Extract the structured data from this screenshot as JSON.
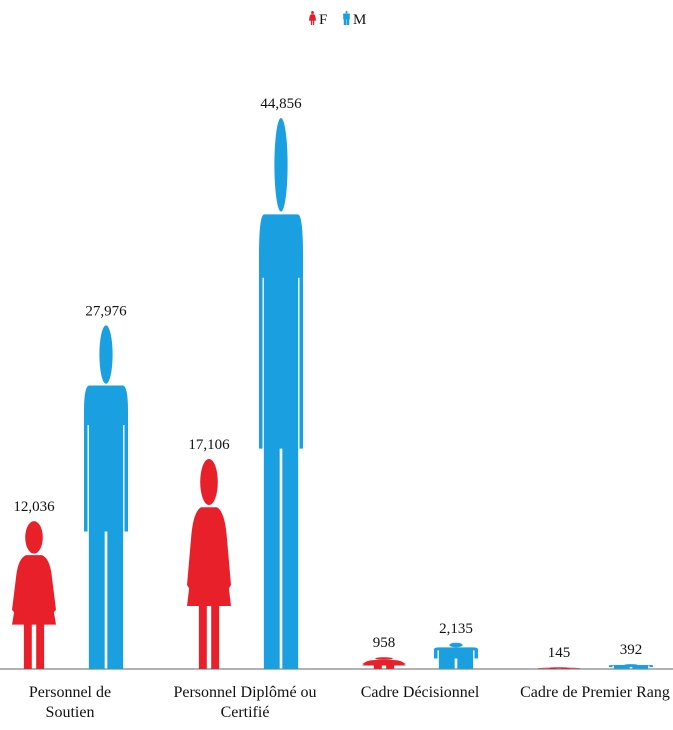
{
  "chart_data": {
    "type": "pictograph",
    "categories": [
      "Personnel de Soutien",
      "Personnel Diplômé ou Certifié",
      "Cadre Décisionnel",
      "Cadre de Premier Rang"
    ],
    "series": [
      {
        "name": "F",
        "color": "#e8202a",
        "shape": "female",
        "values": [
          12036,
          17106,
          958,
          145
        ],
        "value_labels": [
          "12,036",
          "17,106",
          "958",
          "145"
        ]
      },
      {
        "name": "M",
        "color": "#1a9fe0",
        "shape": "male",
        "values": [
          27976,
          44856,
          2135,
          392
        ],
        "value_labels": [
          "27,976",
          "44,856",
          "2,135",
          "392"
        ]
      }
    ],
    "legend": "top"
  }
}
